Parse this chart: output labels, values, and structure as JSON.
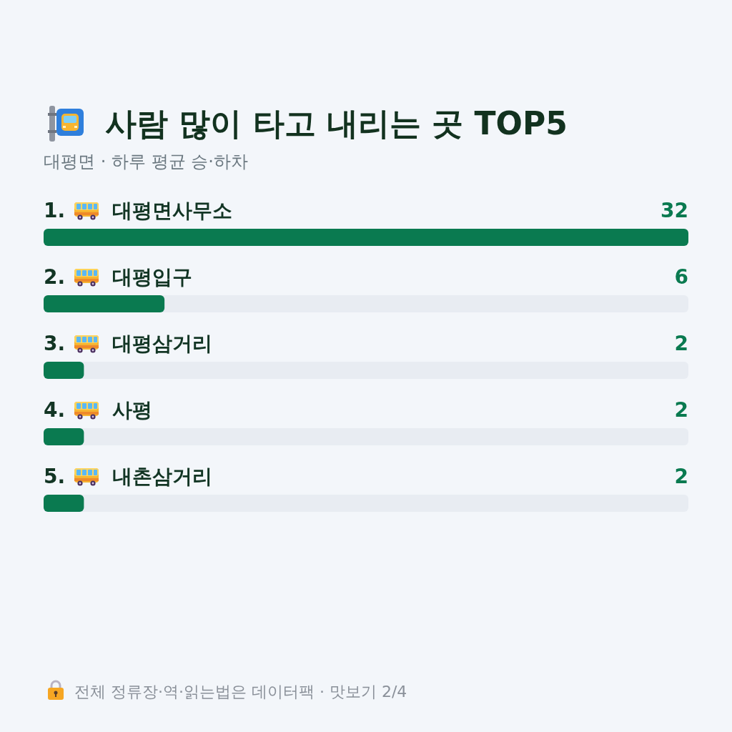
{
  "chart_data": {
    "type": "bar",
    "orientation": "horizontal",
    "title": "사람 많이 타고 내리는 곳 TOP5",
    "subtitle": "대평면 · 하루 평균 승·하차",
    "categories": [
      "1. 대평면사무소",
      "2. 대평입구",
      "3. 대평삼거리",
      "4. 사평",
      "5. 내촌삼거리"
    ],
    "values": [
      32,
      6,
      2,
      2,
      2
    ],
    "color": "#0a7a50",
    "data_labels": true,
    "annotations": [
      "전체 정류장·역·읽는법은 데이터팩 · 맛보기 2/4"
    ]
  }
}
